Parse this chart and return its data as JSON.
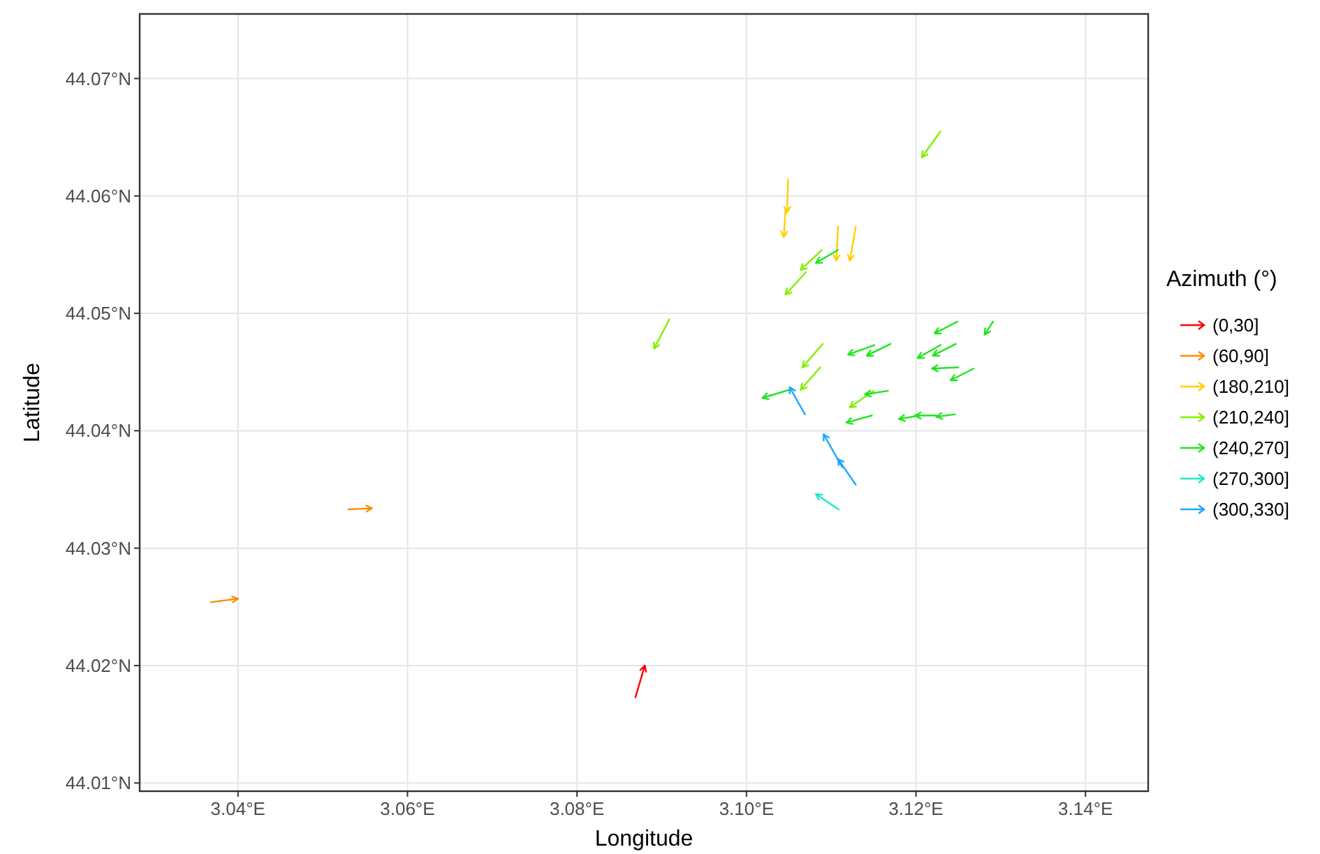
{
  "chart_data": {
    "type": "line",
    "xlabel": "Longitude",
    "ylabel": "Latitude",
    "legend_title": "Azimuth (°)",
    "xlim": [
      3.0284,
      3.1474
    ],
    "ylim": [
      44.0093,
      44.0755
    ],
    "xticks": [
      {
        "value": 3.04,
        "label": "3.04°E"
      },
      {
        "value": 3.06,
        "label": "3.06°E"
      },
      {
        "value": 3.08,
        "label": "3.08°E"
      },
      {
        "value": 3.1,
        "label": "3.10°E"
      },
      {
        "value": 3.12,
        "label": "3.12°E"
      },
      {
        "value": 3.14,
        "label": "3.14°E"
      }
    ],
    "yticks": [
      {
        "value": 44.01,
        "label": "44.01°N"
      },
      {
        "value": 44.02,
        "label": "44.02°N"
      },
      {
        "value": 44.03,
        "label": "44.03°N"
      },
      {
        "value": 44.04,
        "label": "44.04°N"
      },
      {
        "value": 44.05,
        "label": "44.05°N"
      },
      {
        "value": 44.06,
        "label": "44.06°N"
      },
      {
        "value": 44.07,
        "label": "44.07°N"
      }
    ],
    "grid": true,
    "legend": "right",
    "series": [
      {
        "name": "(0,30]",
        "color": "#ff0000",
        "x": [
          3.0869,
          3.088
        ],
        "values": [
          44.0173,
          44.02
        ]
      },
      {
        "name": "(60,90]",
        "color": "#ff8c00",
        "x": [
          3.0368,
          3.04,
          null,
          3.053,
          3.0558
        ],
        "values": [
          44.0254,
          44.0257,
          null,
          44.0333,
          44.0334
        ]
      },
      {
        "name": "(180,210]",
        "color": "#ffd000",
        "x": [
          3.1049,
          3.1048,
          null,
          3.1046,
          3.1044,
          null,
          3.1108,
          3.1106,
          null,
          3.1129,
          3.1122
        ],
        "values": [
          44.0614,
          44.0586,
          null,
          44.0588,
          44.0565,
          null,
          44.0574,
          44.0545,
          null,
          44.0574,
          44.0545
        ]
      },
      {
        "name": "(210,240]",
        "color": "#80f000",
        "x": [
          3.1229,
          3.1207,
          null,
          3.1089,
          3.1064,
          null,
          3.107,
          3.1046,
          null,
          3.0909,
          3.0891,
          null,
          3.109,
          3.1066,
          null,
          3.1087,
          3.1064,
          null,
          3.115,
          3.1122
        ],
        "values": [
          44.0655,
          44.0633,
          null,
          44.0554,
          44.0537,
          null,
          44.0535,
          44.0516,
          null,
          44.0495,
          44.047,
          null,
          44.0474,
          44.0454,
          null,
          44.0454,
          44.0435,
          null,
          44.0434,
          44.042
        ]
      },
      {
        "name": "(240,270]",
        "color": "#1ee61e",
        "x": [
          3.1108,
          3.1082,
          null,
          3.1249,
          3.1222,
          null,
          3.1291,
          3.1281,
          null,
          3.1151,
          3.112,
          null,
          3.117,
          3.1142,
          null,
          3.1229,
          3.1202,
          null,
          3.1247,
          3.122,
          null,
          3.125,
          3.1219,
          null,
          3.1268,
          3.1241,
          null,
          3.1051,
          3.1019,
          null,
          3.1167,
          3.114,
          null,
          3.1148,
          3.1118,
          null,
          3.1246,
          3.1224,
          null,
          3.1224,
          3.1199,
          null,
          3.1204,
          3.118
        ],
        "values": [
          44.0554,
          44.0543,
          null,
          44.0493,
          44.0483,
          null,
          44.0493,
          44.0482,
          null,
          44.0473,
          44.0465,
          null,
          44.0474,
          44.0464,
          null,
          44.0473,
          44.0462,
          null,
          44.0474,
          44.0464,
          null,
          44.0454,
          44.0453,
          null,
          44.0453,
          44.0443,
          null,
          44.0435,
          44.0428,
          null,
          44.0434,
          44.0431,
          null,
          44.0413,
          44.0407,
          null,
          44.0414,
          44.0412,
          null,
          44.0413,
          44.0413,
          null,
          44.0413,
          44.041
        ]
      },
      {
        "name": "(270,300]",
        "color": "#22e6c8",
        "x": [
          3.1109,
          3.1082
        ],
        "values": [
          44.0333,
          44.0346
        ]
      },
      {
        "name": "(300,330]",
        "color": "#1ea8ff",
        "x": [
          3.1069,
          3.1051,
          null,
          3.1129,
          3.1108,
          null,
          3.1113,
          3.1091
        ],
        "values": [
          44.0414,
          44.0437,
          null,
          44.0354,
          44.0376,
          null,
          44.0369,
          44.0397
        ]
      }
    ]
  }
}
